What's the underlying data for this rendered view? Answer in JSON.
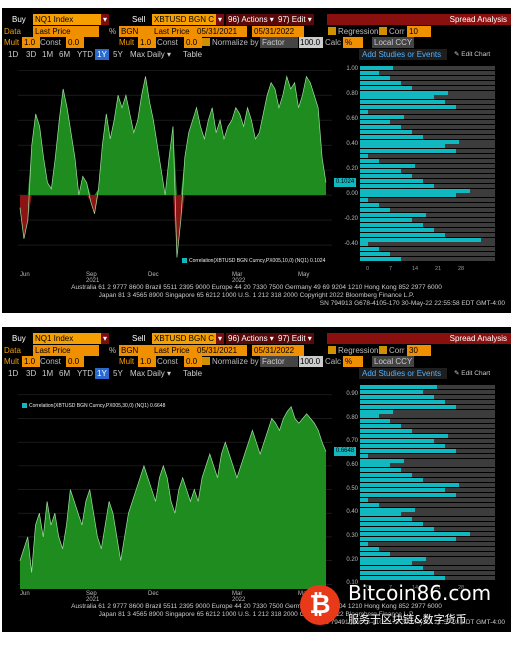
{
  "colors": {
    "accent": "#f5a000",
    "series_fill": "#1f8c1f",
    "negative_fill": "#8b1414",
    "value_badge": "#12b8c0",
    "bars": "#12b8c0",
    "bar_track": "#3c3c3c"
  },
  "panels": [
    {
      "toolbar": {
        "buy_label": "Buy",
        "ticker_a": "NQ1 Index",
        "dropdown_a": "▾",
        "sell_label": "Sell",
        "ticker_b": "XBTUSD BGN C",
        "dropdown_b": "▾",
        "actions": "96) Actions ▾",
        "edit": "97) Edit ▾",
        "spread": "Spread Analysis"
      },
      "row2": {
        "data_label": "Data",
        "data_value": "Last Price",
        "pct": "%",
        "bgn": "BGN",
        "last_price_b": "Last Price",
        "date_from": "05/31/2021",
        "date_to": "05/31/2022",
        "regression_label": "Regression",
        "corr_label": "Corr",
        "corr_value": "10"
      },
      "row3": {
        "mult_label": "Mult",
        "mult_a": "1.0",
        "const_label": "Const",
        "const_a": "0.0",
        "mult_label_b": "Mult",
        "mult_b": "1.0",
        "const_label_b": "Const",
        "const_b": "0.0",
        "normalize_label": "Normalize by",
        "normalize_value": "Factor",
        "normalize_num": "100.0",
        "calc_label": "Calc",
        "calc_value": "%",
        "ccy_value": "Local CCY"
      },
      "row4": {
        "periods": [
          "1D",
          "3D",
          "1M",
          "6M",
          "YTD",
          "1Y",
          "5Y",
          "Max"
        ],
        "selected": "1Y",
        "daily": "Daily ▾",
        "table": "Table",
        "add_studies": "Add Studies or Events",
        "edit_chart": "Edit Chart"
      },
      "legend": "Correlation(XBTUSD BGN Curncy,PX005,10,0) (NQ1) 0.1024",
      "value_badge": "0.1024",
      "chart_data": {
        "type": "area",
        "title": "",
        "xlabel": "",
        "ylabel": "",
        "ylim": [
          -0.6,
          1.05
        ],
        "yticks": [
          "1.00",
          "0.80",
          "0.60",
          "0.40",
          "0.20",
          "0.00",
          "-0.20",
          "-0.40"
        ],
        "xticks": [
          "Jun",
          "Sep\n2021",
          "Dec",
          "Mar\n2022",
          "May"
        ],
        "last_value": 0.1024,
        "series": [
          {
            "values": [
              -0.1,
              -0.35,
              -0.2,
              0.4,
              0.65,
              0.55,
              0.3,
              0.1,
              0.05,
              0.3,
              0.6,
              0.85,
              0.7,
              0.5,
              0.3,
              0.0,
              0.15,
              0.1,
              -0.05,
              -0.15,
              0.05,
              0.4,
              0.65,
              0.45,
              0.6,
              0.8,
              0.7,
              0.8,
              0.65,
              0.5,
              0.6,
              0.8,
              0.95,
              0.75,
              0.6,
              0.4,
              0.2,
              0.0,
              0.3,
              0.55,
              -0.5,
              -0.2,
              0.3,
              0.5,
              0.6,
              0.7,
              0.55,
              0.45,
              0.6,
              0.7,
              0.5,
              0.6,
              0.45,
              0.55,
              0.6,
              0.7,
              0.65,
              0.55,
              0.7,
              0.6,
              0.45,
              0.5,
              0.65,
              0.8,
              0.9,
              0.85,
              0.7,
              0.8,
              0.95,
              0.85,
              0.9,
              0.7,
              0.8,
              0.95,
              0.9,
              0.8,
              0.7,
              0.3,
              0.1
            ]
          }
        ]
      },
      "footer": [
        "Australia 61 2 9777 8600 Brazil 5511 2395 9000 Europe 44 20 7330 7500 Germany 49 69 9204 1210 Hong Kong 852 2977 6000",
        "Japan 81 3 4565 8900       Singapore 65 6212 1000       U.S. 1 212 318 2000       Copyright 2022 Bloomberg Finance L.P.",
        "SN 794913 G678-4105-170 30-May-22 22:55:58 EDT  GMT-4:00"
      ],
      "side_ticks": [
        "0",
        "7",
        "14",
        "21",
        "28"
      ]
    },
    {
      "toolbar": {
        "buy_label": "Buy",
        "ticker_a": "NQ1 Index",
        "dropdown_a": "▾",
        "sell_label": "Sell",
        "ticker_b": "XBTUSD BGN C",
        "dropdown_b": "▾",
        "actions": "96) Actions ▾",
        "edit": "97) Edit ▾",
        "spread": "Spread Analysis"
      },
      "row2": {
        "data_label": "Data",
        "data_value": "Last Price",
        "pct": "%",
        "bgn": "BGN",
        "last_price_b": "Last Price",
        "date_from": "05/31/2021",
        "date_to": "05/31/2022",
        "regression_label": "Regression",
        "corr_label": "Corr",
        "corr_value": "30"
      },
      "row3": {
        "mult_label": "Mult",
        "mult_a": "1.0",
        "const_label": "Const",
        "const_a": "0.0",
        "mult_label_b": "Mult",
        "mult_b": "1.0",
        "const_label_b": "Const",
        "const_b": "0.0",
        "normalize_label": "Normalize by",
        "normalize_value": "Factor",
        "normalize_num": "100.0",
        "calc_label": "Calc",
        "calc_value": "%",
        "ccy_value": "Local CCY"
      },
      "row4": {
        "periods": [
          "1D",
          "3D",
          "1M",
          "6M",
          "YTD",
          "1Y",
          "5Y",
          "Max"
        ],
        "selected": "1Y",
        "daily": "Daily ▾",
        "table": "Table",
        "add_studies": "Add Studies or Events",
        "edit_chart": "Edit Chart"
      },
      "legend": "Correlation(XBTUSD BGN Curncy,PX005,30,0) (NQ1) 0.6648",
      "value_badge": "0.6648",
      "chart_data": {
        "type": "area",
        "title": "",
        "xlabel": "",
        "ylabel": "",
        "ylim": [
          0.08,
          0.95
        ],
        "yticks": [
          "0.90",
          "0.80",
          "0.70",
          "0.60",
          "0.50",
          "0.40",
          "0.30",
          "0.20",
          "0.10"
        ],
        "xticks": [
          "Jun",
          "Sep\n2021",
          "Dec",
          "Mar\n2022",
          "May"
        ],
        "last_value": 0.6648,
        "series": [
          {
            "values": [
              0.2,
              0.25,
              0.3,
              0.15,
              0.35,
              0.4,
              0.3,
              0.45,
              0.35,
              0.4,
              0.3,
              0.25,
              0.35,
              0.5,
              0.45,
              0.4,
              0.35,
              0.45,
              0.5,
              0.4,
              0.3,
              0.25,
              0.35,
              0.45,
              0.4,
              0.3,
              0.2,
              0.3,
              0.4,
              0.45,
              0.5,
              0.55,
              0.6,
              0.55,
              0.5,
              0.45,
              0.55,
              0.6,
              0.55,
              0.45,
              0.4,
              0.5,
              0.55,
              0.5,
              0.45,
              0.5,
              0.45,
              0.55,
              0.6,
              0.65,
              0.6,
              0.55,
              0.65,
              0.7,
              0.65,
              0.6,
              0.55,
              0.6,
              0.65,
              0.7,
              0.75,
              0.7,
              0.65,
              0.7,
              0.75,
              0.8,
              0.78,
              0.75,
              0.8,
              0.83,
              0.85,
              0.8,
              0.78,
              0.8,
              0.82,
              0.8,
              0.78,
              0.75,
              0.7,
              0.66
            ]
          }
        ]
      },
      "footer": [
        "Australia 61 2 9777 8600 Brazil 5511 2395 9000 Europe 44 20 7330 7500 Germany 49 69 9204 1210 Hong Kong 852 2977 6000",
        "Japan 81 3 4565 8900       Singapore 65 6212 1000       U.S. 1 212 318 2000       Copyright 2022 Bloomberg Finance L.P.",
        "SN 794913 G678-4105-170 30-May-22 22:57:03 EDT  GMT-4:00"
      ],
      "side_ticks": [
        "0",
        "7",
        "14",
        "21",
        "28"
      ]
    }
  ],
  "watermark": {
    "coin_symbol": "₿",
    "site": "Bitcoin86.com",
    "slogan": "服务于区块链&数字货币"
  }
}
